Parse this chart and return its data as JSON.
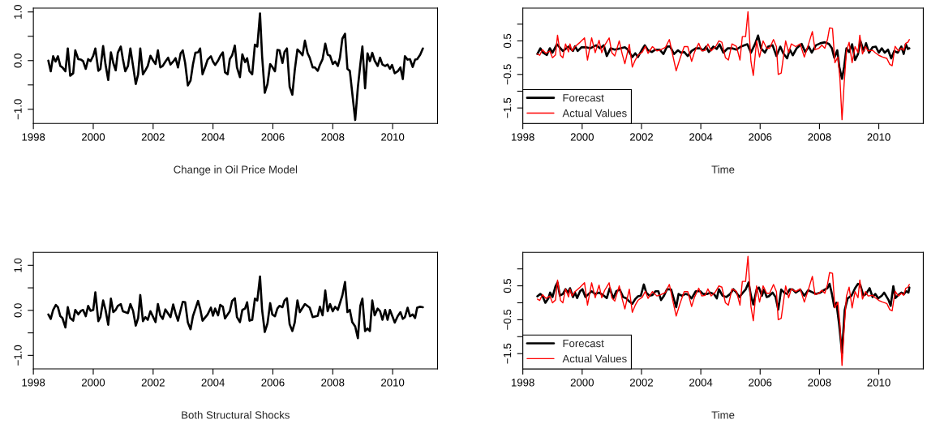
{
  "chart_data": [
    {
      "type": "line",
      "xlabel": "Change in Oil Price Model",
      "xlim": [
        1998,
        2011.5
      ],
      "xticks": [
        1998,
        2000,
        2002,
        2004,
        2006,
        2008,
        2010
      ],
      "ylim": [
        -1.29,
        1.08
      ],
      "yticks": [
        {
          "value": 1.0,
          "label": "1.0"
        },
        {
          "value": 0.5,
          "label": null
        },
        {
          "value": 0.0,
          "label": "0.0"
        },
        {
          "value": -0.5,
          "label": null
        },
        {
          "value": -1.0,
          "label": "−1.0"
        }
      ],
      "legend": false,
      "series": [
        {
          "color": "#000000",
          "x": [
            1998.5,
            1998.58,
            1998.66,
            1998.74,
            1998.82,
            1998.9,
            1998.97,
            1999.07,
            1999.15,
            1999.23,
            1999.33,
            1999.4,
            1999.5,
            1999.59,
            1999.66,
            1999.75,
            1999.83,
            1999.91,
            2000.0,
            2000.07,
            2000.17,
            2000.24,
            2000.33,
            2000.41,
            2000.5,
            2000.59,
            2000.67,
            2000.75,
            2000.82,
            2000.92,
            2000.99,
            2001.07,
            2001.16,
            2001.24,
            2001.33,
            2001.42,
            2001.5,
            2001.57,
            2001.66,
            2001.74,
            2001.82,
            2001.91,
            2002.0,
            2002.08,
            2002.16,
            2002.24,
            2002.32,
            2002.41,
            2002.5,
            2002.58,
            2002.67,
            2002.75,
            2002.83,
            2002.92,
            2002.99,
            2003.07,
            2003.16,
            2003.25,
            2003.33,
            2003.41,
            2003.5,
            2003.57,
            2003.65,
            2003.74,
            2003.82,
            2003.93,
            2004.0,
            2004.07,
            2004.17,
            2004.24,
            2004.33,
            2004.4,
            2004.49,
            2004.56,
            2004.64,
            2004.73,
            2004.8,
            2004.9,
            2004.98,
            2005.07,
            2005.14,
            2005.22,
            2005.31,
            2005.4,
            2005.48,
            2005.57,
            2005.64,
            2005.73,
            2005.82,
            2005.91,
            2005.98,
            2006.07,
            2006.15,
            2006.22,
            2006.32,
            2006.39,
            2006.47,
            2006.56,
            2006.65,
            2006.73,
            2006.82,
            2006.9,
            2006.99,
            2007.07,
            2007.16,
            2007.23,
            2007.33,
            2007.4,
            2007.5,
            2007.57,
            2007.66,
            2007.75,
            2007.83,
            2007.91,
            2008.0,
            2008.08,
            2008.17,
            2008.24,
            2008.32,
            2008.41,
            2008.49,
            2008.57,
            2008.65,
            2008.75,
            2008.84,
            2008.92,
            2008.99,
            2009.08,
            2009.16,
            2009.24,
            2009.32,
            2009.4,
            2009.5,
            2009.58,
            2009.66,
            2009.75,
            2009.83,
            2009.91,
            2009.98,
            2010.07,
            2010.17,
            2010.26,
            2010.34,
            2010.41,
            2010.5,
            2010.58,
            2010.67,
            2010.75,
            2010.82,
            2010.92,
            2011.01
          ],
          "values": [
            0.0,
            -0.22,
            0.09,
            -0.02,
            0.09,
            -0.11,
            -0.14,
            -0.22,
            0.25,
            -0.31,
            -0.26,
            0.21,
            0.03,
            0.02,
            -0.01,
            -0.17,
            0.03,
            -0.01,
            0.1,
            0.25,
            -0.21,
            -0.17,
            0.3,
            -0.08,
            -0.4,
            0.17,
            -0.05,
            -0.2,
            0.16,
            0.29,
            0.03,
            -0.22,
            -0.11,
            0.25,
            -0.11,
            -0.48,
            -0.28,
            0.25,
            -0.28,
            -0.2,
            -0.11,
            0.1,
            0.0,
            -0.07,
            0.21,
            -0.14,
            -0.11,
            -0.02,
            0.06,
            -0.08,
            -0.02,
            0.05,
            -0.14,
            0.15,
            0.21,
            -0.05,
            -0.51,
            -0.41,
            -0.08,
            0.16,
            0.17,
            0.25,
            -0.28,
            -0.13,
            0.02,
            0.09,
            -0.02,
            -0.09,
            0.0,
            0.09,
            0.17,
            -0.24,
            -0.28,
            0.03,
            0.11,
            0.31,
            -0.14,
            -0.34,
            0.13,
            -0.03,
            0.05,
            -0.22,
            -0.28,
            0.33,
            0.29,
            0.97,
            0.09,
            -0.66,
            -0.48,
            -0.07,
            -0.13,
            -0.22,
            0.22,
            0.21,
            -0.05,
            0.18,
            0.25,
            -0.54,
            -0.7,
            -0.2,
            0.23,
            0.18,
            0.11,
            0.41,
            0.15,
            0.06,
            -0.14,
            -0.14,
            -0.21,
            -0.09,
            0.03,
            0.35,
            0.12,
            0.1,
            -0.07,
            -0.02,
            -0.11,
            0.06,
            0.45,
            0.55,
            -0.17,
            -0.21,
            -0.66,
            -1.22,
            -0.54,
            -0.08,
            0.29,
            -0.57,
            0.15,
            -0.01,
            0.16,
            0.0,
            -0.11,
            0.06,
            -0.08,
            -0.11,
            -0.08,
            -0.17,
            -0.09,
            -0.26,
            -0.22,
            -0.14,
            -0.38,
            0.09,
            0.02,
            0.03,
            -0.13,
            0.02,
            0.03,
            0.12,
            0.25
          ]
        }
      ]
    },
    {
      "type": "line",
      "xlabel": "Time",
      "xlim": [
        1998,
        2011.5
      ],
      "xticks": [
        1998,
        2000,
        2002,
        2004,
        2006,
        2008,
        2010
      ],
      "ylim": [
        -1.96,
        1.48
      ],
      "yticks": [
        {
          "value": 1.0,
          "label": null
        },
        {
          "value": 0.5,
          "label": "0.5"
        },
        {
          "value": 0.0,
          "label": null
        },
        {
          "value": -0.5,
          "label": "−0.5"
        },
        {
          "value": -1.0,
          "label": null
        },
        {
          "value": -1.5,
          "label": "−1.5"
        }
      ],
      "legend": "bottom left",
      "series": [
        {
          "name": "Forecast",
          "color": "#000000",
          "x": [
            1998.49,
            1998.59,
            1998.68,
            1998.81,
            1998.91,
            1999.0,
            1999.15,
            1999.35,
            1999.54,
            1999.69,
            1999.76,
            1999.85,
            1999.98,
            2000.13,
            2000.27,
            2000.47,
            2000.61,
            2000.73,
            2000.83,
            2000.96,
            2001.1,
            2001.3,
            2001.44,
            2001.54,
            2001.69,
            2001.79,
            2001.88,
            2002.03,
            2002.11,
            2002.22,
            2002.35,
            2002.47,
            2002.61,
            2002.74,
            2002.86,
            2002.96,
            2003.1,
            2003.23,
            2003.33,
            2003.44,
            2003.56,
            2003.69,
            2003.83,
            2003.98,
            2004.08,
            2004.18,
            2004.27,
            2004.42,
            2004.54,
            2004.63,
            2004.76,
            2004.91,
            2005.05,
            2005.2,
            2005.35,
            2005.57,
            2005.69,
            2005.83,
            2005.93,
            2006.03,
            2006.16,
            2006.27,
            2006.42,
            2006.55,
            2006.68,
            2006.78,
            2006.91,
            2007.0,
            2007.1,
            2007.23,
            2007.4,
            2007.52,
            2007.64,
            2007.74,
            2007.88,
            2008.03,
            2008.18,
            2008.32,
            2008.42,
            2008.5,
            2008.6,
            2008.67,
            2008.76,
            2008.83,
            2008.91,
            2009.0,
            2009.1,
            2009.2,
            2009.3,
            2009.38,
            2009.49,
            2009.57,
            2009.67,
            2009.79,
            2009.9,
            2010.0,
            2010.1,
            2010.2,
            2010.31,
            2010.42,
            2010.52,
            2010.64,
            2010.76,
            2010.84,
            2010.91,
            2010.98,
            2011.03
          ],
          "values": [
            0.11,
            0.28,
            0.15,
            0.08,
            0.28,
            0.15,
            0.4,
            0.2,
            0.33,
            0.2,
            0.34,
            0.2,
            0.31,
            0.31,
            0.28,
            0.37,
            0.28,
            0.37,
            0.05,
            0.28,
            0.24,
            0.28,
            0.31,
            0.24,
            0.02,
            0.13,
            0.02,
            0.26,
            0.37,
            0.22,
            0.17,
            0.24,
            0.24,
            0.11,
            0.33,
            0.34,
            0.11,
            0.22,
            0.15,
            0.17,
            0.05,
            0.2,
            0.28,
            0.28,
            0.22,
            0.33,
            0.17,
            0.33,
            0.26,
            0.4,
            0.15,
            0.28,
            0.28,
            0.24,
            0.33,
            0.4,
            0.15,
            0.41,
            0.66,
            0.28,
            0.15,
            0.33,
            0.37,
            0.05,
            0.33,
            0.13,
            -0.02,
            0.24,
            0.07,
            0.28,
            0.41,
            0.17,
            0.33,
            0.15,
            0.37,
            0.43,
            0.46,
            0.41,
            0.28,
            0.0,
            0.22,
            -0.28,
            -0.63,
            -0.28,
            0.28,
            0.17,
            0.4,
            -0.07,
            0.11,
            0.5,
            0.2,
            0.43,
            0.15,
            0.31,
            0.33,
            0.15,
            0.28,
            0.15,
            0.24,
            -0.02,
            0.2,
            0.15,
            0.33,
            0.11,
            0.4,
            0.26,
            0.28
          ]
        },
        {
          "name": "Actual Values",
          "color": "#ff0000",
          "x": [
            1998.49,
            1998.57,
            1998.66,
            1998.78,
            1998.91,
            1999.0,
            1999.1,
            1999.17,
            1999.27,
            1999.35,
            1999.44,
            1999.54,
            1999.59,
            1999.66,
            1999.76,
            1999.93,
            2000.08,
            2000.18,
            2000.32,
            2000.44,
            2000.57,
            2000.66,
            2000.76,
            2000.91,
            2001.0,
            2001.1,
            2001.25,
            2001.35,
            2001.44,
            2001.59,
            2001.69,
            2001.79,
            2001.88,
            2002.03,
            2002.13,
            2002.22,
            2002.37,
            2002.52,
            2002.66,
            2002.81,
            2002.94,
            2003.03,
            2003.17,
            2003.3,
            2003.44,
            2003.56,
            2003.69,
            2003.79,
            2003.93,
            2004.03,
            2004.15,
            2004.24,
            2004.35,
            2004.5,
            2004.61,
            2004.71,
            2004.83,
            2004.93,
            2005.05,
            2005.2,
            2005.32,
            2005.4,
            2005.51,
            2005.59,
            2005.69,
            2005.77,
            2005.88,
            2005.98,
            2006.1,
            2006.22,
            2006.32,
            2006.45,
            2006.55,
            2006.61,
            2006.71,
            2006.86,
            2006.96,
            2007.05,
            2007.2,
            2007.35,
            2007.49,
            2007.62,
            2007.76,
            2007.85,
            2007.98,
            2008.08,
            2008.18,
            2008.27,
            2008.34,
            2008.44,
            2008.52,
            2008.62,
            2008.69,
            2008.76,
            2008.83,
            2008.91,
            2009.0,
            2009.1,
            2009.2,
            2009.3,
            2009.36,
            2009.45,
            2009.55,
            2009.64,
            2009.79,
            2009.88,
            2010.0,
            2010.13,
            2010.27,
            2010.37,
            2010.45,
            2010.55,
            2010.66,
            2010.76,
            2010.84,
            2010.91,
            2010.98,
            2011.03
          ],
          "values": [
            0.11,
            0.07,
            0.24,
            0.13,
            0.2,
            0.0,
            0.08,
            0.67,
            0.07,
            0.0,
            0.41,
            0.17,
            0.41,
            0.2,
            0.33,
            0.46,
            0.59,
            -0.07,
            0.59,
            0.15,
            0.52,
            0.15,
            0.37,
            0.59,
            0.15,
            0.05,
            0.5,
            0.11,
            -0.18,
            0.4,
            -0.28,
            -0.07,
            0.07,
            0.17,
            0.34,
            0.13,
            0.33,
            0.2,
            0.24,
            0.31,
            0.54,
            0.17,
            -0.39,
            -0.02,
            0.33,
            0.33,
            -0.11,
            0.17,
            0.43,
            0.2,
            0.22,
            0.41,
            0.2,
            0.33,
            0.5,
            0.46,
            0.0,
            -0.07,
            0.41,
            0.34,
            -0.07,
            0.63,
            0.63,
            1.37,
            -0.11,
            -0.53,
            0.5,
            0.02,
            0.5,
            0.28,
            0.28,
            0.54,
            0.33,
            -0.5,
            -0.46,
            0.5,
            0.15,
            0.41,
            0.33,
            0.41,
            0.02,
            0.37,
            0.78,
            0.24,
            0.28,
            0.37,
            0.28,
            0.54,
            0.89,
            0.87,
            -0.15,
            0.02,
            -0.63,
            -1.85,
            -0.8,
            0.2,
            0.46,
            -0.15,
            0.33,
            0.15,
            0.67,
            0.11,
            0.33,
            0.2,
            0.22,
            0.15,
            0.07,
            0.02,
            -0.02,
            -0.2,
            -0.24,
            0.34,
            0.2,
            0.28,
            0.22,
            0.43,
            0.46,
            0.54
          ]
        }
      ]
    },
    {
      "type": "line",
      "xlabel": "Both Structural Shocks",
      "xlim": [
        1998,
        2011.5
      ],
      "xticks": [
        1998,
        2000,
        2002,
        2004,
        2006,
        2008,
        2010
      ],
      "ylim": [
        -1.3,
        1.29
      ],
      "yticks": [
        {
          "value": 1.0,
          "label": "1.0"
        },
        {
          "value": 0.5,
          "label": null
        },
        {
          "value": 0.0,
          "label": "0.0"
        },
        {
          "value": -0.5,
          "label": null
        },
        {
          "value": -1.0,
          "label": "−1.0"
        }
      ],
      "legend": false,
      "series": [
        {
          "color": "#000000",
          "x": [
            1998.5,
            1998.58,
            1998.66,
            1998.75,
            1998.82,
            1998.9,
            1998.97,
            1999.07,
            1999.15,
            1999.23,
            1999.33,
            1999.4,
            1999.5,
            1999.59,
            1999.66,
            1999.75,
            1999.83,
            1999.91,
            2000.0,
            2000.07,
            2000.17,
            2000.24,
            2000.33,
            2000.41,
            2000.5,
            2000.59,
            2000.67,
            2000.75,
            2000.82,
            2000.92,
            2000.99,
            2001.16,
            2001.24,
            2001.33,
            2001.42,
            2001.5,
            2001.57,
            2001.66,
            2001.74,
            2001.82,
            2001.91,
            2002.08,
            2002.16,
            2002.24,
            2002.32,
            2002.41,
            2002.58,
            2002.67,
            2002.75,
            2002.83,
            2002.92,
            2002.99,
            2003.07,
            2003.16,
            2003.25,
            2003.33,
            2003.5,
            2003.57,
            2003.65,
            2003.82,
            2003.93,
            2004.0,
            2004.07,
            2004.17,
            2004.24,
            2004.33,
            2004.4,
            2004.56,
            2004.64,
            2004.73,
            2004.8,
            2004.9,
            2004.98,
            2005.07,
            2005.14,
            2005.22,
            2005.31,
            2005.4,
            2005.48,
            2005.57,
            2005.64,
            2005.73,
            2005.82,
            2005.91,
            2005.98,
            2006.07,
            2006.15,
            2006.22,
            2006.32,
            2006.39,
            2006.47,
            2006.56,
            2006.65,
            2006.73,
            2006.82,
            2006.9,
            2007.07,
            2007.23,
            2007.33,
            2007.5,
            2007.57,
            2007.66,
            2007.75,
            2007.83,
            2007.91,
            2008.0,
            2008.08,
            2008.17,
            2008.32,
            2008.41,
            2008.49,
            2008.57,
            2008.65,
            2008.75,
            2008.84,
            2008.92,
            2008.99,
            2009.08,
            2009.16,
            2009.24,
            2009.32,
            2009.4,
            2009.5,
            2009.58,
            2009.66,
            2009.75,
            2009.83,
            2009.91,
            2009.98,
            2010.07,
            2010.17,
            2010.26,
            2010.34,
            2010.41,
            2010.5,
            2010.58,
            2010.67,
            2010.75,
            2010.82,
            2010.92,
            2011.01
          ],
          "values": [
            -0.09,
            -0.19,
            0.01,
            0.12,
            0.07,
            -0.13,
            -0.17,
            -0.38,
            0.07,
            -0.17,
            -0.23,
            0.01,
            -0.09,
            -0.01,
            0.01,
            -0.13,
            0.1,
            -0.01,
            0.01,
            0.4,
            -0.24,
            -0.15,
            0.22,
            0.01,
            -0.32,
            0.26,
            -0.04,
            0.01,
            0.1,
            0.14,
            -0.02,
            -0.06,
            0.14,
            -0.01,
            -0.34,
            -0.17,
            0.34,
            -0.24,
            -0.15,
            -0.21,
            -0.02,
            -0.26,
            0.14,
            -0.11,
            -0.19,
            0.02,
            -0.15,
            0.13,
            -0.07,
            -0.23,
            0.01,
            0.19,
            0.18,
            -0.27,
            -0.42,
            -0.13,
            0.21,
            0.04,
            -0.23,
            -0.09,
            0.06,
            -0.12,
            0.04,
            -0.11,
            0.12,
            0.08,
            -0.18,
            -0.02,
            0.21,
            0.27,
            -0.15,
            -0.26,
            0.01,
            0.04,
            0.18,
            -0.23,
            -0.21,
            0.26,
            0.22,
            0.75,
            0.01,
            -0.48,
            -0.29,
            0.16,
            -0.09,
            -0.13,
            0.04,
            0.1,
            0.07,
            0.22,
            0.27,
            -0.31,
            -0.46,
            -0.27,
            0.22,
            -0.04,
            0.14,
            0.06,
            -0.15,
            -0.12,
            0.08,
            -0.11,
            0.44,
            -0.02,
            0.14,
            -0.02,
            0.08,
            0.01,
            0.33,
            0.63,
            -0.04,
            0.01,
            -0.26,
            -0.36,
            -0.62,
            0.1,
            0.26,
            -0.46,
            -0.4,
            -0.46,
            0.22,
            -0.11,
            0.04,
            -0.02,
            -0.21,
            0.01,
            -0.21,
            0.01,
            -0.11,
            -0.27,
            -0.13,
            -0.04,
            -0.19,
            -0.15,
            0.06,
            -0.13,
            -0.09,
            -0.17,
            0.06,
            0.08,
            0.07
          ]
        }
      ]
    },
    {
      "type": "line",
      "xlabel": "Time",
      "xlim": [
        1998,
        2011.5
      ],
      "xticks": [
        1998,
        2000,
        2002,
        2004,
        2006,
        2008,
        2010
      ],
      "ylim": [
        -1.95,
        1.49
      ],
      "yticks": [
        {
          "value": 1.0,
          "label": null
        },
        {
          "value": 0.5,
          "label": "0.5"
        },
        {
          "value": 0.0,
          "label": null
        },
        {
          "value": -0.5,
          "label": "−0.5"
        },
        {
          "value": -1.0,
          "label": null
        },
        {
          "value": -1.5,
          "label": "−1.5"
        }
      ],
      "legend": "bottom left",
      "series": [
        {
          "name": "Forecast",
          "color": "#000000",
          "x": [
            1998.49,
            1998.59,
            1998.66,
            1998.76,
            1998.86,
            1998.92,
            1999.0,
            1999.1,
            1999.17,
            1999.25,
            1999.35,
            1999.44,
            1999.52,
            1999.59,
            1999.69,
            1999.76,
            1999.83,
            1999.93,
            2000.01,
            2000.11,
            2000.22,
            2000.32,
            2000.44,
            2000.57,
            2000.73,
            2000.83,
            2000.93,
            2001.05,
            2001.15,
            2001.27,
            2001.38,
            2001.49,
            2001.59,
            2001.69,
            2001.79,
            2001.88,
            2001.98,
            2002.08,
            2002.16,
            2002.27,
            2002.37,
            2002.47,
            2002.57,
            2002.66,
            2002.76,
            2002.86,
            2003.0,
            2003.17,
            2003.25,
            2003.35,
            2003.49,
            2003.59,
            2003.69,
            2003.83,
            2003.98,
            2004.08,
            2004.22,
            2004.32,
            2004.44,
            2004.54,
            2004.61,
            2004.73,
            2004.86,
            2004.99,
            2005.1,
            2005.2,
            2005.3,
            2005.42,
            2005.51,
            2005.61,
            2005.69,
            2005.77,
            2005.88,
            2005.96,
            2006.06,
            2006.13,
            2006.22,
            2006.29,
            2006.42,
            2006.52,
            2006.61,
            2006.71,
            2006.81,
            2006.91,
            2007.0,
            2007.1,
            2007.2,
            2007.35,
            2007.49,
            2007.62,
            2007.74,
            2007.88,
            2008.03,
            2008.18,
            2008.27,
            2008.34,
            2008.42,
            2008.5,
            2008.57,
            2008.66,
            2008.76,
            2008.85,
            2008.95,
            2009.08,
            2009.2,
            2009.3,
            2009.38,
            2009.48,
            2009.57,
            2009.69,
            2009.79,
            2009.88,
            2009.98,
            2010.1,
            2010.18,
            2010.33,
            2010.4,
            2010.49,
            2010.56,
            2010.66,
            2010.76,
            2010.85,
            2010.92,
            2011.0,
            2011.03
          ],
          "values": [
            0.19,
            0.26,
            0.21,
            0.0,
            0.13,
            0.3,
            0.17,
            0.48,
            0.6,
            0.21,
            0.26,
            0.4,
            0.3,
            0.43,
            0.17,
            0.3,
            0.14,
            0.34,
            0.4,
            0.17,
            0.26,
            0.34,
            0.26,
            0.3,
            0.21,
            0.14,
            0.43,
            0.13,
            0.34,
            0.39,
            0.17,
            0.13,
            0.04,
            -0.03,
            0.11,
            0.19,
            0.21,
            0.54,
            0.3,
            0.21,
            0.23,
            0.34,
            0.34,
            0.08,
            0.21,
            0.4,
            0.39,
            -0.13,
            0.26,
            0.21,
            0.26,
            0.23,
            0.13,
            0.34,
            0.34,
            0.26,
            0.26,
            0.3,
            0.26,
            0.13,
            0.4,
            0.21,
            0.17,
            0.26,
            0.4,
            0.3,
            0.17,
            0.3,
            0.39,
            0.6,
            0.21,
            -0.05,
            0.39,
            0.45,
            0.21,
            0.39,
            0.17,
            0.19,
            0.3,
            0.17,
            -0.2,
            0.39,
            0.3,
            0.26,
            0.4,
            0.39,
            0.3,
            0.39,
            0.21,
            0.37,
            0.32,
            0.26,
            0.3,
            0.39,
            0.43,
            0.56,
            0.26,
            -0.12,
            0.0,
            -0.61,
            -1.48,
            -0.22,
            0.13,
            0.21,
            0.43,
            0.56,
            0.52,
            0.21,
            0.26,
            0.43,
            0.17,
            0.26,
            0.13,
            0.21,
            0.3,
            0.08,
            -0.09,
            0.49,
            0.14,
            0.23,
            0.3,
            0.26,
            0.34,
            0.3,
            0.45
          ]
        },
        {
          "name": "Actual Values",
          "color": "#ff0000",
          "x": [
            1998.49,
            1998.57,
            1998.66,
            1998.78,
            1998.91,
            1999.0,
            1999.1,
            1999.17,
            1999.27,
            1999.35,
            1999.44,
            1999.54,
            1999.59,
            1999.66,
            1999.76,
            1999.93,
            2000.08,
            2000.18,
            2000.32,
            2000.44,
            2000.57,
            2000.66,
            2000.76,
            2000.91,
            2001.0,
            2001.1,
            2001.25,
            2001.35,
            2001.44,
            2001.59,
            2001.69,
            2001.79,
            2001.88,
            2002.03,
            2002.13,
            2002.22,
            2002.37,
            2002.52,
            2002.66,
            2002.81,
            2002.94,
            2003.03,
            2003.17,
            2003.3,
            2003.44,
            2003.56,
            2003.69,
            2003.79,
            2003.93,
            2004.03,
            2004.15,
            2004.24,
            2004.35,
            2004.5,
            2004.61,
            2004.71,
            2004.83,
            2004.93,
            2005.05,
            2005.2,
            2005.32,
            2005.4,
            2005.51,
            2005.59,
            2005.69,
            2005.77,
            2005.88,
            2005.98,
            2006.1,
            2006.22,
            2006.32,
            2006.45,
            2006.55,
            2006.61,
            2006.71,
            2006.86,
            2006.96,
            2007.05,
            2007.2,
            2007.35,
            2007.49,
            2007.62,
            2007.76,
            2007.85,
            2007.98,
            2008.08,
            2008.18,
            2008.27,
            2008.34,
            2008.44,
            2008.52,
            2008.62,
            2008.69,
            2008.76,
            2008.83,
            2008.91,
            2009.0,
            2009.1,
            2009.2,
            2009.3,
            2009.36,
            2009.45,
            2009.55,
            2009.64,
            2009.79,
            2009.88,
            2010.0,
            2010.13,
            2010.27,
            2010.37,
            2010.45,
            2010.55,
            2010.66,
            2010.76,
            2010.84,
            2010.91,
            2010.98,
            2011.03
          ],
          "values": [
            0.11,
            0.07,
            0.24,
            0.13,
            0.2,
            0.0,
            0.08,
            0.67,
            0.07,
            0.0,
            0.41,
            0.17,
            0.41,
            0.2,
            0.33,
            0.46,
            0.59,
            -0.07,
            0.59,
            0.15,
            0.52,
            0.15,
            0.37,
            0.59,
            0.15,
            0.05,
            0.5,
            0.11,
            -0.18,
            0.4,
            -0.28,
            -0.07,
            0.07,
            0.17,
            0.34,
            0.13,
            0.33,
            0.2,
            0.24,
            0.31,
            0.54,
            0.17,
            -0.39,
            -0.02,
            0.33,
            0.33,
            -0.11,
            0.17,
            0.43,
            0.2,
            0.22,
            0.41,
            0.2,
            0.33,
            0.5,
            0.46,
            0.0,
            -0.07,
            0.41,
            0.34,
            -0.07,
            0.63,
            0.63,
            1.37,
            -0.11,
            -0.53,
            0.5,
            0.02,
            0.5,
            0.28,
            0.28,
            0.54,
            0.33,
            -0.5,
            -0.46,
            0.5,
            0.15,
            0.41,
            0.33,
            0.41,
            0.02,
            0.37,
            0.78,
            0.24,
            0.28,
            0.37,
            0.28,
            0.54,
            0.89,
            0.87,
            -0.15,
            0.02,
            -0.63,
            -1.85,
            -0.8,
            0.2,
            0.46,
            -0.15,
            0.33,
            0.15,
            0.67,
            0.11,
            0.33,
            0.2,
            0.22,
            0.15,
            0.07,
            0.02,
            -0.02,
            -0.2,
            -0.24,
            0.34,
            0.2,
            0.28,
            0.22,
            0.43,
            0.46,
            0.54
          ]
        }
      ]
    }
  ]
}
